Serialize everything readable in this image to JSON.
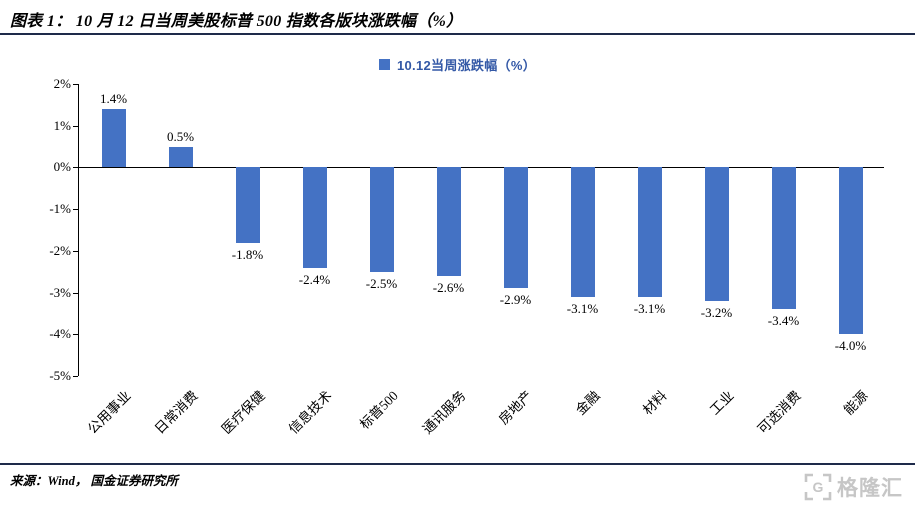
{
  "page": {
    "title": "图表 1： 10 月 12 日当周美股标普 500 指数各版块涨跌幅（%）",
    "source": "来源：Wind， 国金证券研究所",
    "watermark_text": "格隆汇"
  },
  "chart_data": {
    "type": "bar",
    "title": "10 月 12 日当周美股标普 500 指数各版块涨跌幅（%）",
    "legend": [
      "10.12当周涨跌幅（%）"
    ],
    "legend_position": "top",
    "categories": [
      "公用事业",
      "日常消费",
      "医疗保健",
      "信息技术",
      "标普500",
      "通讯服务",
      "房地产",
      "金融",
      "材料",
      "工业",
      "可选消费",
      "能源"
    ],
    "values": [
      1.4,
      0.5,
      -1.8,
      -2.4,
      -2.5,
      -2.6,
      -2.9,
      -3.1,
      -3.1,
      -3.2,
      -3.4,
      -4.0
    ],
    "value_labels": [
      "1.4%",
      "0.5%",
      "-1.8%",
      "-2.4%",
      "-2.5%",
      "-2.6%",
      "-2.9%",
      "-3.1%",
      "-3.1%",
      "-3.2%",
      "-3.4%",
      "-4.0%"
    ],
    "ylim": [
      -5,
      2
    ],
    "ytick_values": [
      2,
      1,
      0,
      -1,
      -2,
      -3,
      -4,
      -5
    ],
    "ytick_labels": [
      "2%",
      "1%",
      "0%",
      "-1%",
      "-2%",
      "-3%",
      "-4%",
      "-5%"
    ],
    "grid": false,
    "colors": {
      "bar": "#4472C4",
      "legend_text": "#3358A6",
      "axis": "#000000",
      "watermark": "#C6C6C6"
    }
  }
}
